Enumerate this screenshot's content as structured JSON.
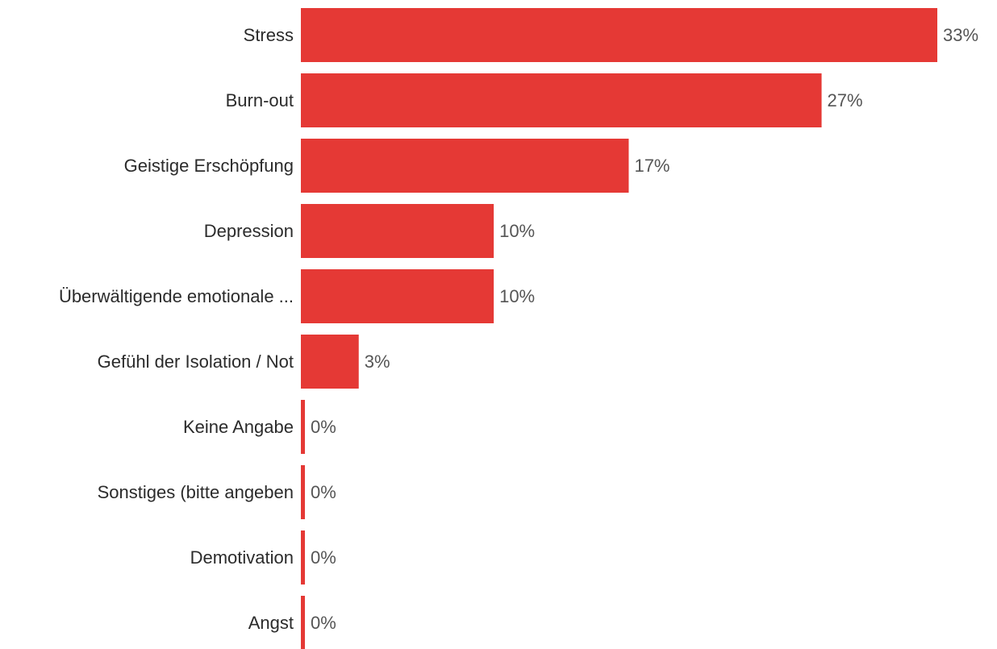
{
  "chart_data": {
    "type": "bar",
    "orientation": "horizontal",
    "categories": [
      "Stress",
      "Burn-out",
      "Geistige Erschöpfung",
      "Depression",
      "Überwältigende emotionale ...",
      "Gefühl der Isolation / Not",
      "Keine Angabe",
      "Sonstiges (bitte angeben",
      "Demotivation",
      "Angst"
    ],
    "values": [
      33,
      27,
      17,
      10,
      10,
      3,
      0,
      0,
      0,
      0
    ],
    "value_labels": [
      "33%",
      "27%",
      "17%",
      "10%",
      "10%",
      "3%",
      "0%",
      "0%",
      "0%",
      "0%"
    ],
    "unit": "%",
    "bar_color": "#e53935",
    "grid": false,
    "legend": "none"
  }
}
